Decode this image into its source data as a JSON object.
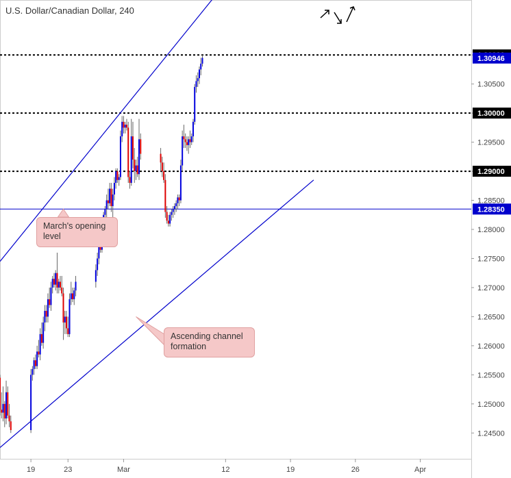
{
  "chart_data": {
    "type": "candlestick",
    "title": "U.S. Dollar/Canadian Dollar, 240",
    "y_ticks": [
      1.245,
      1.25,
      1.255,
      1.26,
      1.265,
      1.27,
      1.275,
      1.28,
      1.285,
      1.29,
      1.295,
      1.3,
      1.305,
      1.31
    ],
    "y_tick_labels": [
      "1.24500",
      "1.25000",
      "1.25500",
      "1.26000",
      "1.26500",
      "1.27000",
      "1.27500",
      "1.28000",
      "1.28500",
      "1.29000",
      "1.29500",
      "1.30000",
      "1.30500",
      "1.31000"
    ],
    "ylim": [
      1.2415,
      1.3185
    ],
    "x_ticks": [
      {
        "label": "19",
        "date": "2018-02-19"
      },
      {
        "label": "23",
        "date": "2018-02-23"
      },
      {
        "label": "Mar",
        "date": "2018-03-01"
      },
      {
        "label": "12",
        "date": "2018-03-12"
      },
      {
        "label": "19",
        "date": "2018-03-19"
      },
      {
        "label": "26",
        "date": "2018-03-26"
      },
      {
        "label": "Apr",
        "date": "2018-04-02"
      }
    ],
    "xlim": [
      "2018-02-15T16:00",
      "2018-04-07T12:00"
    ],
    "levels": [
      {
        "value": 1.31,
        "label": "1.31000",
        "style": "dashed",
        "color": "#000000"
      },
      {
        "value": 1.3,
        "label": "1.30000",
        "style": "dashed",
        "color": "#000000"
      },
      {
        "value": 1.29,
        "label": "1.29000",
        "style": "dashed",
        "color": "#000000"
      },
      {
        "value": 1.2835,
        "label": "1.28350",
        "style": "solid",
        "color": "#0000cc"
      }
    ],
    "current_price": {
      "value": 1.30946,
      "label": "1.30946",
      "color": "#0000cc"
    },
    "channel_lines": [
      {
        "name": "channel-upper",
        "from": [
          "2018-02-15T16:00",
          1.2745
        ],
        "to": [
          "2018-03-18T04:00",
          1.3345
        ]
      },
      {
        "name": "channel-lower",
        "from": [
          "2018-02-15T16:00",
          1.2425
        ],
        "to": [
          "2018-03-21T12:00",
          1.2885
        ]
      }
    ],
    "bull_color": "#0000dd",
    "bear_color": "#dd0000",
    "candles": [
      [
        1.2545,
        1.255,
        1.248,
        1.249
      ],
      [
        1.249,
        1.252,
        1.2475,
        1.2485
      ],
      [
        1.2485,
        1.253,
        1.247,
        1.25
      ],
      [
        1.25,
        1.2505,
        1.246,
        1.2475
      ],
      [
        1.2475,
        1.254,
        1.2465,
        1.252
      ],
      [
        1.252,
        1.253,
        1.2475,
        1.248
      ],
      [
        1.248,
        1.25,
        1.246,
        1.247
      ],
      [
        1.247,
        1.248,
        1.245,
        1.2455
      ],
      [
        1.2455,
        1.256,
        1.245,
        1.255
      ],
      [
        1.255,
        1.2565,
        1.254,
        1.256
      ],
      [
        1.256,
        1.258,
        1.255,
        1.2575
      ],
      [
        1.2575,
        1.2585,
        1.256,
        1.2565
      ],
      [
        1.2565,
        1.26,
        1.256,
        1.259
      ],
      [
        1.259,
        1.261,
        1.258,
        1.2585
      ],
      [
        1.2585,
        1.263,
        1.2575,
        1.262
      ],
      [
        1.262,
        1.264,
        1.26,
        1.2605
      ],
      [
        1.2605,
        1.265,
        1.2595,
        1.264
      ],
      [
        1.264,
        1.267,
        1.2625,
        1.266
      ],
      [
        1.266,
        1.267,
        1.264,
        1.265
      ],
      [
        1.265,
        1.269,
        1.264,
        1.268
      ],
      [
        1.268,
        1.27,
        1.2665,
        1.267
      ],
      [
        1.267,
        1.271,
        1.266,
        1.27
      ],
      [
        1.27,
        1.272,
        1.269,
        1.2715
      ],
      [
        1.2715,
        1.2725,
        1.27,
        1.2705
      ],
      [
        1.2705,
        1.273,
        1.2695,
        1.2725
      ],
      [
        1.2725,
        1.276,
        1.269,
        1.27
      ],
      [
        1.27,
        1.2715,
        1.269,
        1.271
      ],
      [
        1.271,
        1.272,
        1.2695,
        1.27
      ],
      [
        1.27,
        1.272,
        1.2685,
        1.269
      ],
      [
        1.269,
        1.27,
        1.261,
        1.264
      ],
      [
        1.264,
        1.266,
        1.262,
        1.265
      ],
      [
        1.265,
        1.266,
        1.262,
        1.263
      ],
      [
        1.263,
        1.265,
        1.2615,
        1.262
      ],
      [
        1.262,
        1.269,
        1.2615,
        1.268
      ],
      [
        1.268,
        1.271,
        1.267,
        1.269
      ],
      [
        1.269,
        1.27,
        1.2675,
        1.268
      ],
      [
        1.268,
        1.27,
        1.267,
        1.2695
      ],
      [
        1.2695,
        1.272,
        1.2685,
        1.271
      ],
      [
        1.271,
        1.274,
        1.27,
        1.273
      ],
      [
        1.273,
        1.276,
        1.272,
        1.275
      ],
      [
        1.275,
        1.278,
        1.274,
        1.277
      ],
      [
        1.277,
        1.279,
        1.276,
        1.2765
      ],
      [
        1.2765,
        1.28,
        1.276,
        1.2795
      ],
      [
        1.2795,
        1.283,
        1.2785,
        1.2825
      ],
      [
        1.2825,
        1.284,
        1.281,
        1.2835
      ],
      [
        1.2835,
        1.286,
        1.282,
        1.285
      ],
      [
        1.285,
        1.287,
        1.2835,
        1.2845
      ],
      [
        1.2845,
        1.288,
        1.284,
        1.287
      ],
      [
        1.287,
        1.288,
        1.283,
        1.284
      ],
      [
        1.284,
        1.287,
        1.2815,
        1.286
      ],
      [
        1.286,
        1.289,
        1.285,
        1.288
      ],
      [
        1.288,
        1.2905,
        1.287,
        1.29
      ],
      [
        1.29,
        1.2905,
        1.288,
        1.2885
      ],
      [
        1.2885,
        1.2895,
        1.2875,
        1.289
      ],
      [
        1.289,
        1.297,
        1.2885,
        1.296
      ],
      [
        1.296,
        1.2995,
        1.295,
        1.2985
      ],
      [
        1.2985,
        1.2995,
        1.2965,
        1.2975
      ],
      [
        1.2975,
        1.2985,
        1.2965,
        1.298
      ],
      [
        1.298,
        1.299,
        1.297,
        1.2975
      ],
      [
        1.2975,
        1.2985,
        1.288,
        1.289
      ],
      [
        1.289,
        1.29,
        1.287,
        1.288
      ],
      [
        1.288,
        1.299,
        1.2875,
        1.296
      ],
      [
        1.296,
        1.2985,
        1.2905,
        1.292
      ],
      [
        1.292,
        1.294,
        1.288,
        1.29
      ],
      [
        1.29,
        1.292,
        1.2885,
        1.291
      ],
      [
        1.291,
        1.2925,
        1.289,
        1.2895
      ],
      [
        1.2895,
        1.299,
        1.2885,
        1.2955
      ],
      [
        1.2955,
        1.2965,
        1.292,
        1.293
      ],
      [
        1.293,
        1.294,
        1.29,
        1.2915
      ],
      [
        1.2915,
        1.2925,
        1.289,
        1.29
      ],
      [
        1.29,
        1.2915,
        1.288,
        1.2885
      ],
      [
        1.2885,
        1.2895,
        1.282,
        1.283
      ],
      [
        1.283,
        1.284,
        1.281,
        1.2815
      ],
      [
        1.2815,
        1.2825,
        1.2805,
        1.281
      ],
      [
        1.281,
        1.283,
        1.2805,
        1.2825
      ],
      [
        1.2825,
        1.2835,
        1.2815,
        1.283
      ],
      [
        1.283,
        1.284,
        1.282,
        1.2835
      ],
      [
        1.2835,
        1.2845,
        1.2825,
        1.284
      ],
      [
        1.284,
        1.285,
        1.283,
        1.2845
      ],
      [
        1.2845,
        1.286,
        1.2835,
        1.2855
      ],
      [
        1.2855,
        1.286,
        1.284,
        1.285
      ],
      [
        1.285,
        1.292,
        1.2845,
        1.291
      ],
      [
        1.291,
        1.297,
        1.29,
        1.296
      ],
      [
        1.296,
        1.298,
        1.294,
        1.2955
      ],
      [
        1.2955,
        1.2965,
        1.294,
        1.295
      ],
      [
        1.295,
        1.296,
        1.2935,
        1.2945
      ],
      [
        1.2945,
        1.296,
        1.293,
        1.2955
      ],
      [
        1.2955,
        1.297,
        1.294,
        1.295
      ],
      [
        1.295,
        1.2965,
        1.2945,
        1.296
      ],
      [
        1.296,
        1.299,
        1.295,
        1.2985
      ],
      [
        1.2985,
        1.305,
        1.298,
        1.3045
      ],
      [
        1.3045,
        1.3065,
        1.3035,
        1.3055
      ],
      [
        1.3055,
        1.307,
        1.3045,
        1.306
      ],
      [
        1.306,
        1.308,
        1.305,
        1.3075
      ],
      [
        1.3075,
        1.3095,
        1.3065,
        1.3085
      ],
      [
        1.3085,
        1.31,
        1.308,
        1.3095
      ]
    ],
    "annotations": [
      {
        "text_lines": [
          "March's opening",
          "level"
        ],
        "points_to": [
          "2018-02-22T12:00",
          1.2835
        ]
      },
      {
        "text_lines": [
          "Ascending channel",
          "formation"
        ],
        "points_to": [
          "2018-03-02T08:00",
          1.265
        ]
      }
    ]
  }
}
